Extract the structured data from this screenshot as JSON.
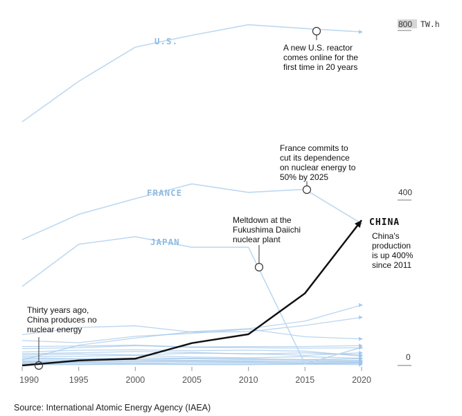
{
  "chart_data": {
    "type": "line",
    "x": [
      1990,
      1995,
      2000,
      2005,
      2010,
      2015,
      2020
    ],
    "ylim": [
      0,
      800
    ],
    "y_ticks": [
      "0",
      "400",
      "800"
    ],
    "y_unit": "TW.h",
    "series": [
      {
        "name": "U.S.",
        "values": [
          577,
          673,
          754,
          782,
          807,
          798,
          790
        ],
        "highlight": false
      },
      {
        "name": "FRANCE",
        "values": [
          298,
          358,
          395,
          430,
          410,
          417,
          336
        ],
        "highlight": false
      },
      {
        "name": "JAPAN",
        "values": [
          187,
          287,
          305,
          280,
          280,
          4,
          43
        ],
        "highlight": false
      },
      {
        "name": "CHINA",
        "values": [
          0,
          12,
          16,
          53,
          74,
          171,
          344
        ],
        "highlight": true
      },
      {
        "name": "",
        "values": [
          73,
          90,
          94,
          79,
          80,
          95,
          114
        ],
        "highlight": false
      },
      {
        "name": "",
        "values": [
          13,
          48,
          65,
          80,
          87,
          105,
          143
        ],
        "highlight": false
      },
      {
        "name": "",
        "values": [
          59,
          54,
          69,
          76,
          86,
          68,
          63
        ],
        "highlight": false
      },
      {
        "name": "",
        "values": [
          45,
          46,
          48,
          44,
          45,
          45,
          47
        ],
        "highlight": false
      },
      {
        "name": "",
        "values": [
          40,
          42,
          47,
          43,
          42,
          41,
          42
        ],
        "highlight": false
      },
      {
        "name": "",
        "values": [
          32,
          36,
          37,
          35,
          36,
          34,
          22
        ],
        "highlight": false
      },
      {
        "name": "",
        "values": [
          28,
          30,
          33,
          31,
          27,
          30,
          25
        ],
        "highlight": false
      },
      {
        "name": "",
        "values": [
          25,
          27,
          25,
          29,
          28,
          24,
          30
        ],
        "highlight": false
      },
      {
        "name": "",
        "values": [
          21,
          22,
          24,
          20,
          18,
          21,
          17
        ],
        "highlight": false
      },
      {
        "name": "",
        "values": [
          18,
          16,
          18,
          17,
          16,
          14,
          12
        ],
        "highlight": false
      },
      {
        "name": "",
        "values": [
          15,
          15,
          14,
          16,
          14,
          14,
          16
        ],
        "highlight": false
      },
      {
        "name": "",
        "values": [
          11,
          12,
          13,
          12,
          11,
          10,
          8
        ],
        "highlight": false
      },
      {
        "name": "",
        "values": [
          9,
          9,
          10,
          11,
          10,
          11,
          10
        ],
        "highlight": false
      },
      {
        "name": "",
        "values": [
          7,
          8,
          8,
          9,
          8,
          7,
          6
        ],
        "highlight": false
      },
      {
        "name": "",
        "values": [
          5,
          6,
          5,
          6,
          6,
          5,
          6
        ],
        "highlight": false
      },
      {
        "name": "",
        "values": [
          4,
          3,
          4,
          3,
          3,
          4,
          5
        ],
        "highlight": false
      },
      {
        "name": "",
        "values": [
          2,
          2,
          3,
          2,
          2,
          3,
          2
        ],
        "highlight": false
      }
    ],
    "annotations": [
      {
        "text": [
          "Thirty years ago,",
          "China produces no",
          "nuclear energy"
        ],
        "x": 1991,
        "y": 0
      },
      {
        "text": [
          "Meltdown at the",
          "Fukushima Daiichi",
          "nuclear plant"
        ],
        "x": 2010.5,
        "y": 280
      },
      {
        "text": [
          "France commits to",
          "cut its dependence",
          "on nuclear energy to",
          "50% by 2025"
        ],
        "x": 2015,
        "y": 417
      },
      {
        "text": [
          "A new U.S. reactor",
          "comes online for the",
          "first time in 20 years"
        ],
        "x": 2016,
        "y": 798
      },
      {
        "text": [
          "China's",
          "production",
          "is up 400%",
          "since 2011"
        ],
        "x": 2020,
        "y": 344
      }
    ],
    "grid": false,
    "legend": "inline labels"
  },
  "source": "Source: International Atomic Energy Agency (IAEA)"
}
